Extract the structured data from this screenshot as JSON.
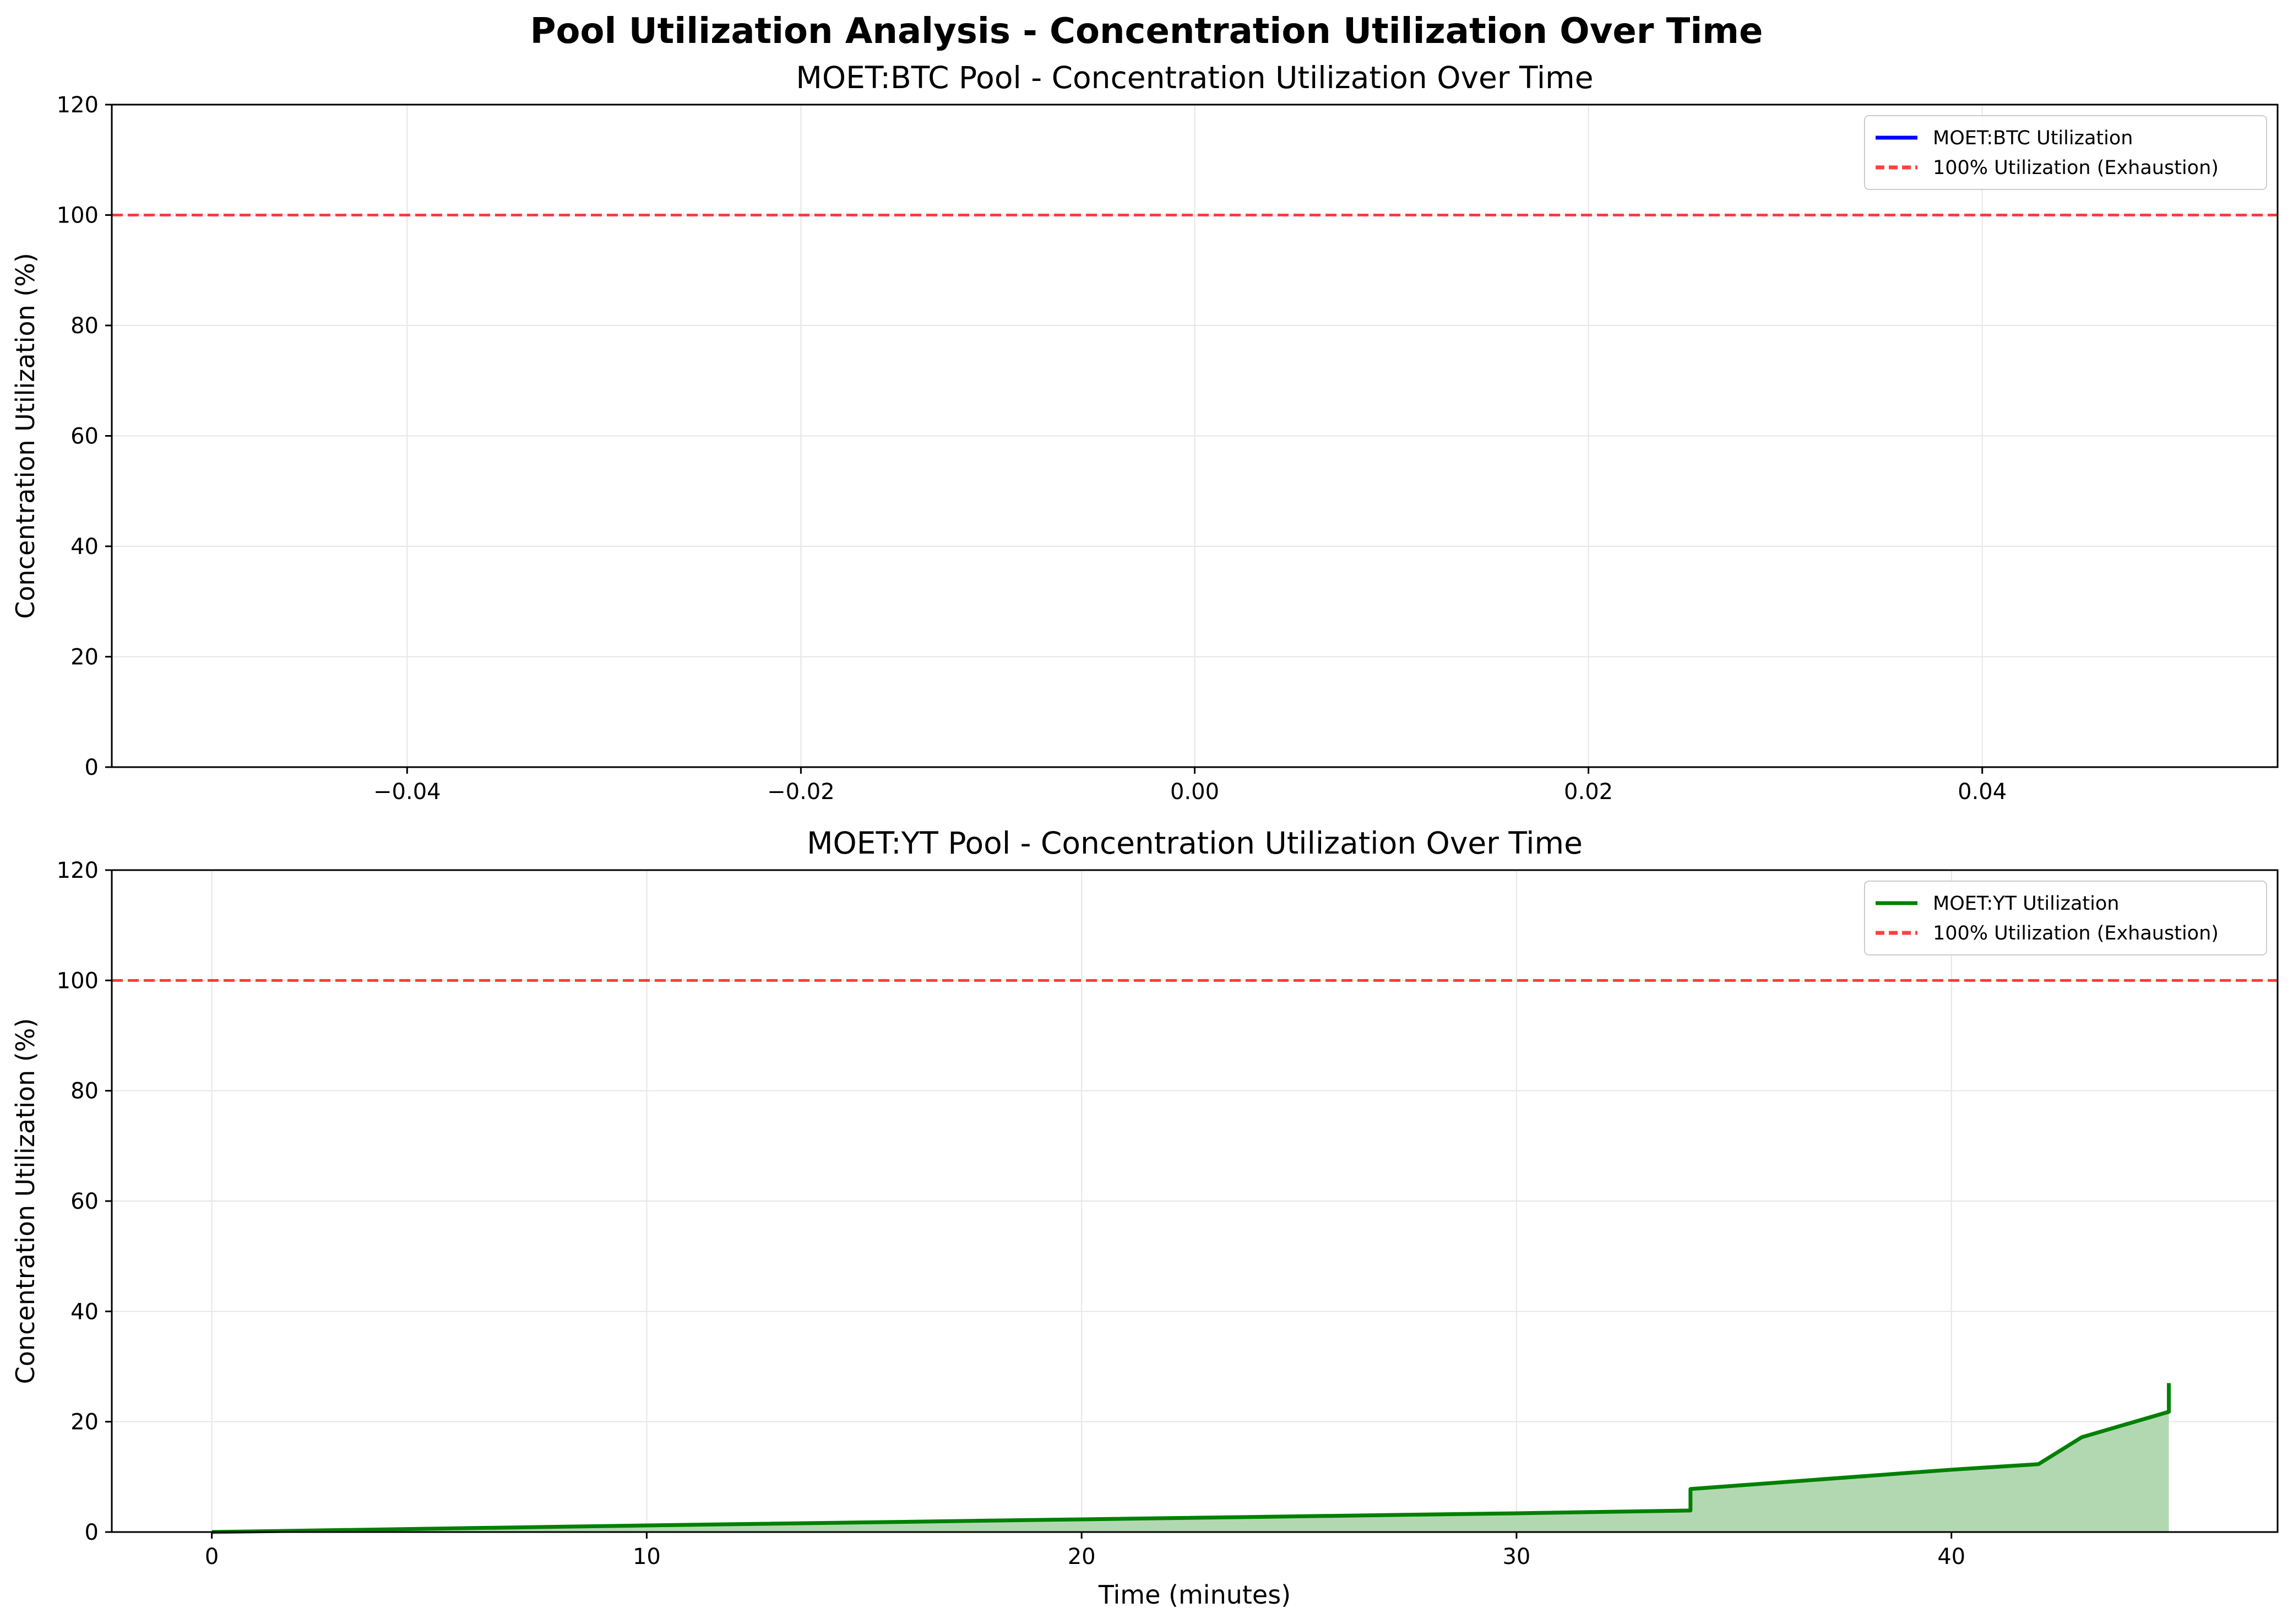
{
  "figure_title": "Pool Utilization Analysis - Concentration Utilization Over Time",
  "chart_data": [
    {
      "type": "line",
      "title": "MOET:BTC Pool - Concentration Utilization Over Time",
      "xlabel": "",
      "ylabel": "Concentration Utilization (%)",
      "xlim": [
        -0.055,
        0.055
      ],
      "ylim": [
        0,
        120
      ],
      "xticks": [
        -0.04,
        -0.02,
        0.0,
        0.02,
        0.04
      ],
      "xtick_labels": [
        "−0.04",
        "−0.02",
        "0.00",
        "0.02",
        "0.04"
      ],
      "yticks": [
        0,
        20,
        40,
        60,
        80,
        100,
        120
      ],
      "ytick_labels": [
        "0",
        "20",
        "40",
        "60",
        "80",
        "100",
        "120"
      ],
      "grid": true,
      "legend_position": "top-right",
      "series": [
        {
          "name": "MOET:BTC Utilization",
          "color": "#0000ff",
          "style": "solid",
          "x": [],
          "y": [],
          "fill": false
        }
      ],
      "reference_lines": [
        {
          "name": "100% Utilization (Exhaustion)",
          "y": 100,
          "color": "#ff0000",
          "style": "dashed"
        }
      ]
    },
    {
      "type": "area",
      "title": "MOET:YT Pool - Concentration Utilization Over Time",
      "xlabel": "Time (minutes)",
      "ylabel": "Concentration Utilization (%)",
      "xlim": [
        -2.3,
        47.5
      ],
      "ylim": [
        0,
        120
      ],
      "xticks": [
        0,
        10,
        20,
        30,
        40
      ],
      "xtick_labels": [
        "0",
        "10",
        "20",
        "30",
        "40"
      ],
      "yticks": [
        0,
        20,
        40,
        60,
        80,
        100,
        120
      ],
      "ytick_labels": [
        "0",
        "20",
        "40",
        "60",
        "80",
        "100",
        "120"
      ],
      "grid": true,
      "legend_position": "top-right",
      "series": [
        {
          "name": "MOET:YT Utilization",
          "color": "#008000",
          "fill_color": "#b2d8b2",
          "style": "solid",
          "fill": true,
          "x": [
            0,
            10,
            20,
            30,
            34,
            34,
            40,
            42,
            43,
            45,
            45
          ],
          "y": [
            0,
            1.2,
            2.3,
            3.4,
            3.9,
            7.8,
            11.3,
            12.3,
            17.2,
            21.8,
            27.0
          ]
        }
      ],
      "reference_lines": [
        {
          "name": "100% Utilization (Exhaustion)",
          "y": 100,
          "color": "#ff0000",
          "style": "dashed"
        }
      ]
    }
  ]
}
